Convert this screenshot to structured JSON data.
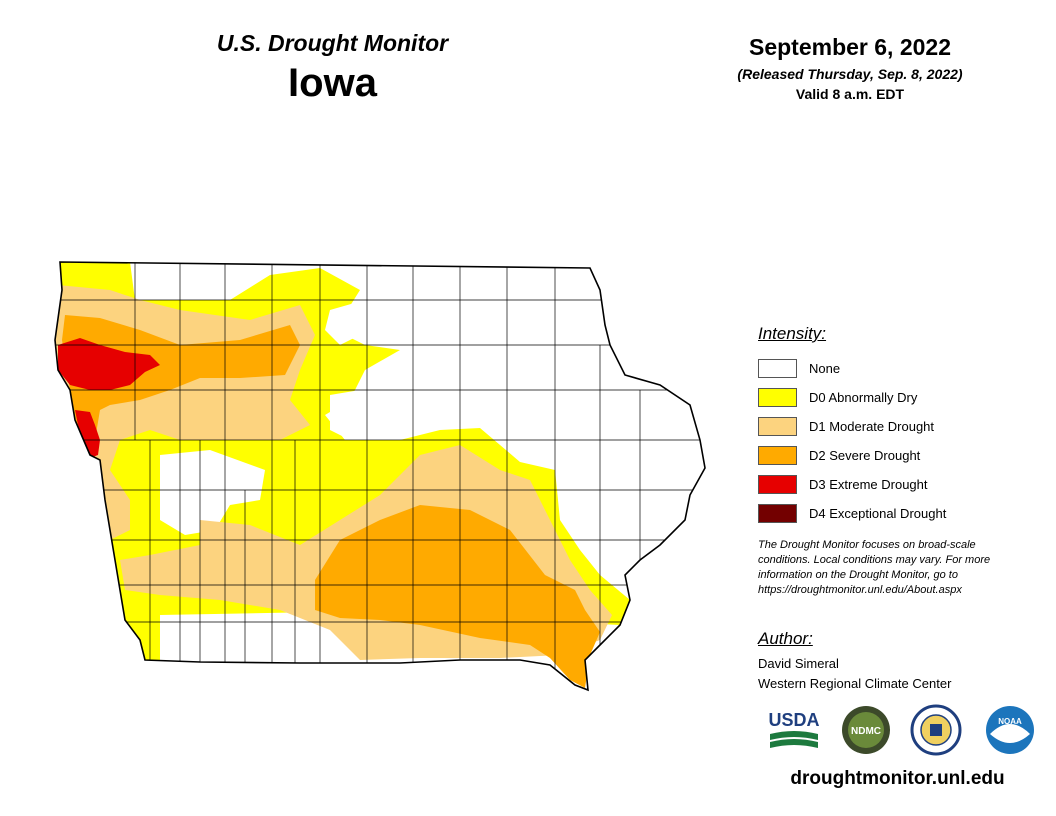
{
  "header": {
    "monitor_title": "U.S. Drought Monitor",
    "state": "Iowa"
  },
  "date": {
    "main": "September 6, 2022",
    "released": "(Released Thursday, Sep. 8, 2022)",
    "valid": "Valid 8 a.m. EDT"
  },
  "legend": {
    "heading": "Intensity:",
    "items": [
      {
        "label": "None",
        "color": "#ffffff"
      },
      {
        "label": "D0 Abnormally Dry",
        "color": "#ffff00"
      },
      {
        "label": "D1 Moderate Drought",
        "color": "#fcd37f"
      },
      {
        "label": "D2 Severe Drought",
        "color": "#ffaa00"
      },
      {
        "label": "D3 Extreme Drought",
        "color": "#e60000"
      },
      {
        "label": "D4 Exceptional Drought",
        "color": "#730000"
      }
    ]
  },
  "note": {
    "lines": [
      "The Drought Monitor focuses on broad-scale",
      "conditions. Local conditions may vary. For more",
      "information on the Drought Monitor, go to",
      "https://droughtmonitor.unl.edu/About.aspx"
    ]
  },
  "author": {
    "heading": "Author:",
    "name": "David Simeral",
    "org": "Western Regional Climate Center"
  },
  "logos": {
    "usda": "USDA",
    "ndmc": "NDMC",
    "noaa": "NOAA"
  },
  "footer": {
    "url": "droughtmonitor.unl.edu"
  },
  "map": {
    "state_outline_color": "#000000",
    "county_line_color": "#000000"
  }
}
